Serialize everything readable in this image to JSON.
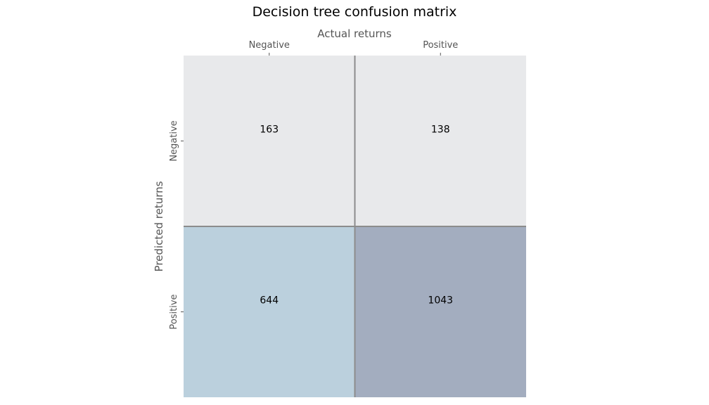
{
  "chart_data": {
    "type": "heatmap",
    "title": "Decision tree confusion matrix",
    "xlabel": "Actual returns",
    "ylabel": "Predicted returns",
    "x_categories": [
      "Negative",
      "Positive"
    ],
    "y_categories": [
      "Negative",
      "Positive"
    ],
    "values": [
      [
        163,
        138
      ],
      [
        644,
        1043
      ]
    ],
    "x_axis_position": "top",
    "grid": false,
    "legend": "none",
    "cell_colors": [
      [
        "#e8e9eb",
        "#e8e9eb"
      ],
      [
        "#bbd0dd",
        "#a3adbf"
      ]
    ],
    "grid_line_color": "#8c8c8c"
  }
}
